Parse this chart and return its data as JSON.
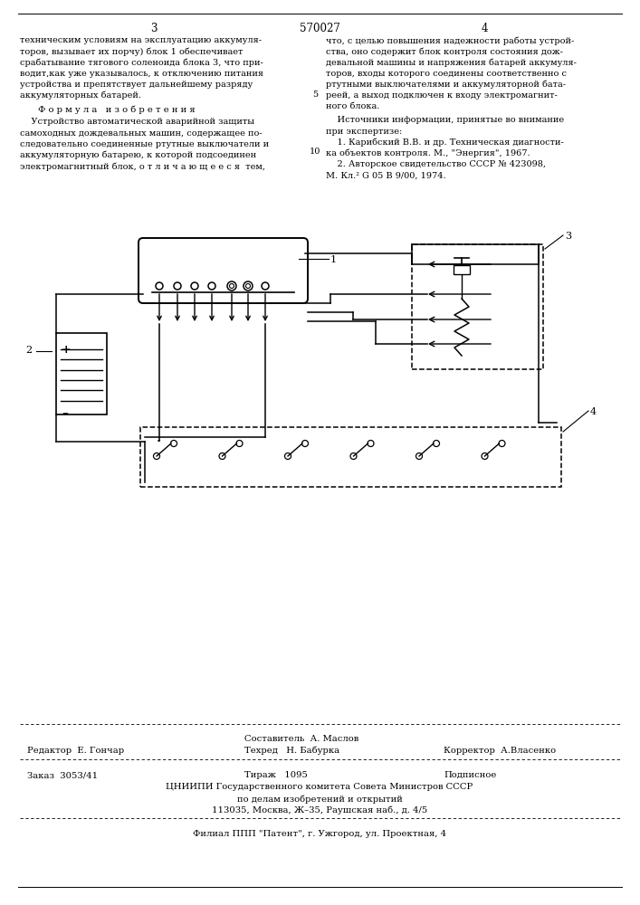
{
  "page_number_left": "3",
  "page_number_center": "570027",
  "page_number_right": "4",
  "col_left_text": [
    "техническим условиям на эксплуатацию аккумуля-",
    "торов, вызывает их порчу) блок 1 обеспечивает",
    "срабатывание тягового соленоида блока 3, что при-",
    "водит,как уже указывалось, к отключению питания",
    "устройства и препятствует дальнейшему разряду",
    "аккумуляторных батарей."
  ],
  "formula_title": "Ф о р м у л а   и з о б р е т е н и я",
  "formula_text": [
    "    Устройство автоматической аварийной защиты",
    "самоходных дождевальных машин, содержащее по-",
    "следовательно соединенные ртутные выключатели и",
    "аккумуляторную батарею, к которой подсоединен",
    "электромагнитный блок, о т л и ч а ю щ е е с я  тем,"
  ],
  "col_right_text": [
    "что, с целью повышения надежности работы устрой-",
    "ства, оно содержит блок контроля состояния дож-",
    "девальной машины и напряжения батарей аккумуля-",
    "торов, входы которого соединены соответственно с",
    "ртутными выключателями и аккумуляторной бата-",
    "реей, а выход подключен к входу электромагнит-",
    "ного блока."
  ],
  "sources_title": "    Источники информации, принятые во внимание",
  "sources_text": [
    "при экспертизе:",
    "    1. Карибский В.В. и др. Техническая диагности-",
    "ка объектов контроля. М., \"Энергия\", 1967.",
    "    2. Авторское свидетельство СССР № 423098,",
    "М. Кл.² G 05 B 9/00, 1974."
  ],
  "line_num_5": "5",
  "line_num_10": "10",
  "footer_editor": "Редактор  Е. Гончар",
  "footer_composer_title": "Составитель  А. Маслов",
  "footer_tech": "Техред   Н. Бабурка",
  "footer_corrector": "Корректор  А.Власенко",
  "footer_order": "Заказ  3053/41",
  "footer_tirazh": "Тираж   1095",
  "footer_podpisnoe": "Подписное",
  "footer_cniip1": "ЦНИИПИ Государственного комитета Совета Министров СССР",
  "footer_cniip2": "по делам изобретений и открытий",
  "footer_cniip3": "113035, Москва, Ж–35, Раушская наб., д. 4/5",
  "footer_filial": "Филиал ППП \"Патент\", г. Ужгород, ул. Проектная, 4",
  "bg_color": "#ffffff",
  "text_color": "#000000",
  "diagram_label1": "1",
  "diagram_label2": "2",
  "diagram_label3": "3",
  "diagram_label4": "4"
}
